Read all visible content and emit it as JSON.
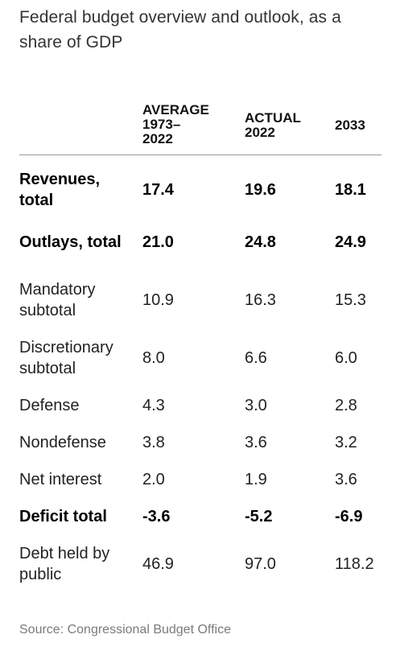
{
  "title": "Federal budget overview and outlook, as a share of GDP",
  "columns": {
    "average": "AVERAGE\n1973–\n2022",
    "actual": "ACTUAL\n2022",
    "y2033": "2033"
  },
  "rows": [
    {
      "label": "Revenues, total",
      "average": "17.4",
      "actual": "19.6",
      "y2033": "18.1"
    },
    {
      "label": "Outlays, total",
      "average": "21.0",
      "actual": "24.8",
      "y2033": "24.9"
    },
    {
      "label": "Mandatory subtotal",
      "average": "10.9",
      "actual": "16.3",
      "y2033": "15.3"
    },
    {
      "label": "Discretionary subtotal",
      "average": "8.0",
      "actual": "6.6",
      "y2033": "6.0"
    },
    {
      "label": "Defense",
      "average": "4.3",
      "actual": "3.0",
      "y2033": "2.8"
    },
    {
      "label": "Nondefense",
      "average": "3.8",
      "actual": "3.6",
      "y2033": "3.2"
    },
    {
      "label": "Net interest",
      "average": "2.0",
      "actual": "1.9",
      "y2033": "3.6"
    },
    {
      "label": "Deficit total",
      "average": "-3.6",
      "actual": "-5.2",
      "y2033": "-6.9"
    },
    {
      "label": "Debt held by public",
      "average": "46.9",
      "actual": "97.0",
      "y2033": "118.2"
    }
  ],
  "source": "Source: Congressional Budget Office"
}
